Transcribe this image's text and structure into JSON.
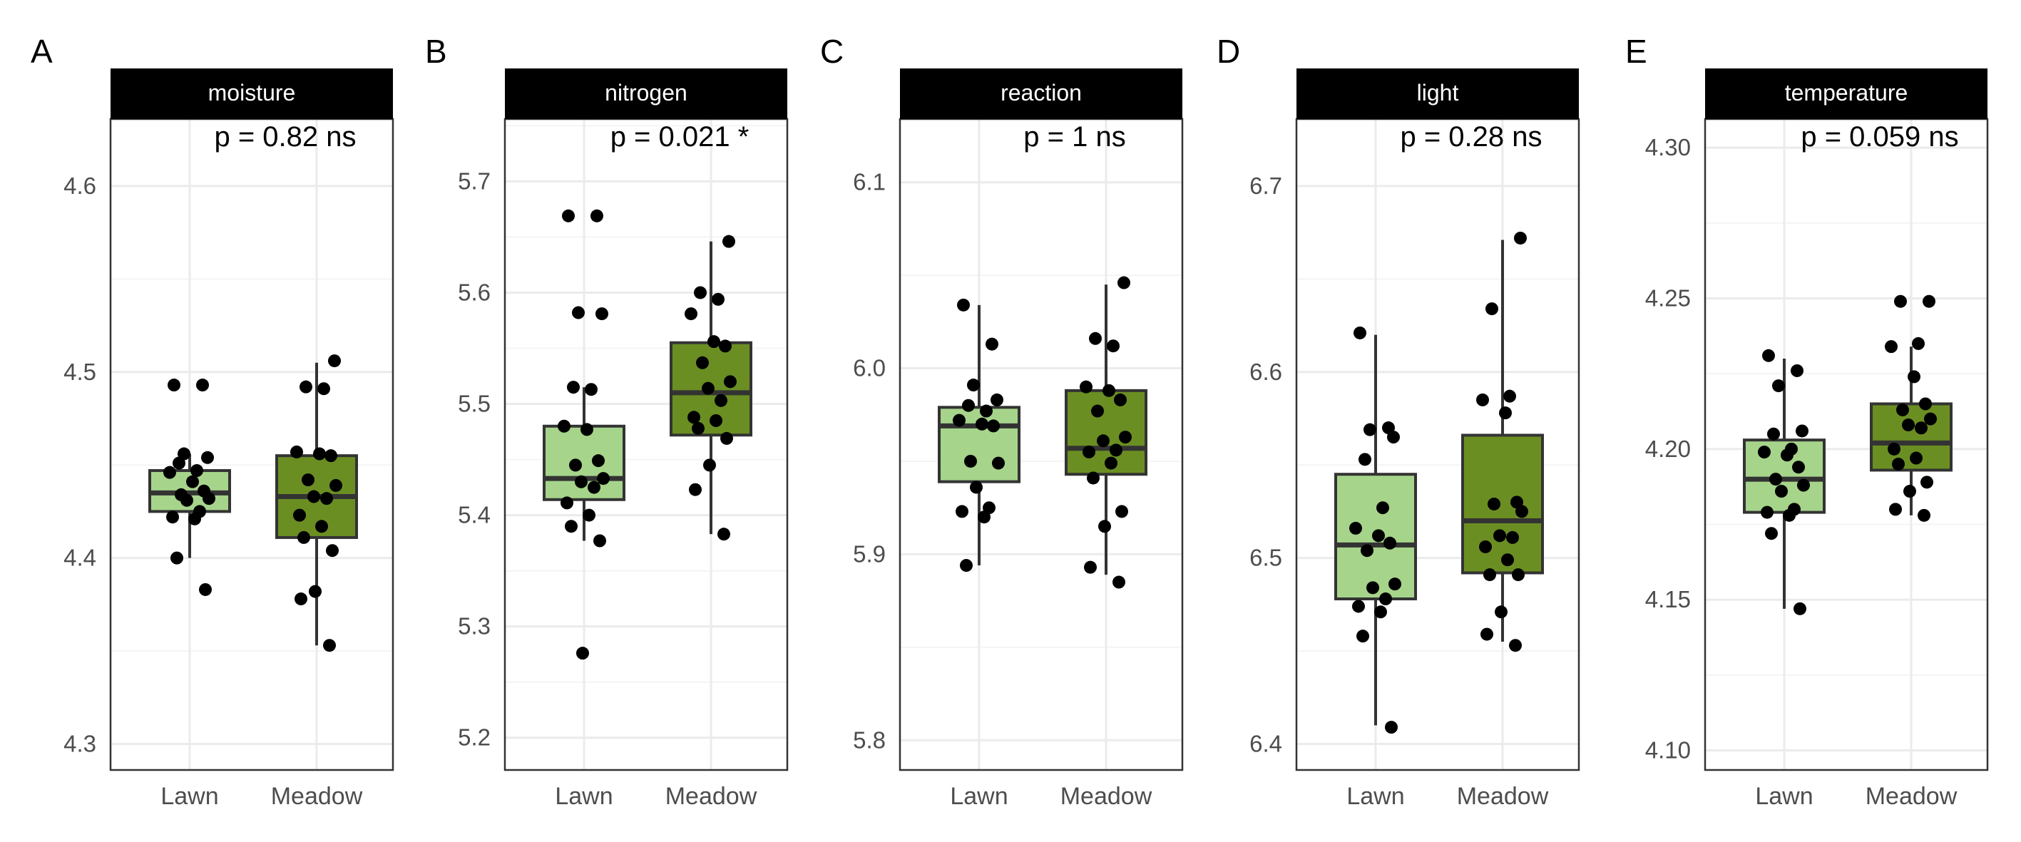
{
  "colors": {
    "Lawn": "#a6d48b",
    "Meadow": "#6b8e23",
    "strip": "#000000",
    "strip_text": "#ffffff",
    "grid_major": "#ebebeb",
    "grid_minor": "#f4f4f4",
    "outline": "#333333",
    "point": "#000000"
  },
  "chart_data": [
    {
      "type": "box",
      "panel": "A",
      "title": "moisture",
      "annotation": "p = 0.82 ns",
      "categories": [
        "Lawn",
        "Meadow"
      ],
      "ylim": [
        4.286,
        4.636
      ],
      "yticks": [
        4.3,
        4.4,
        4.5,
        4.6
      ],
      "ytick_labels": [
        "4.3",
        "4.4",
        "4.5",
        "4.6"
      ],
      "boxes": [
        {
          "category": "Lawn",
          "whisker_low": 4.4,
          "q1": 4.425,
          "median": 4.435,
          "q3": 4.447,
          "whisker_high": 4.456
        },
        {
          "category": "Meadow",
          "whisker_low": 4.353,
          "q1": 4.411,
          "median": 4.433,
          "q3": 4.455,
          "whisker_high": 4.505
        }
      ],
      "points": [
        {
          "category": "Lawn",
          "values": [
            4.493,
            4.493,
            4.456,
            4.454,
            4.451,
            4.447,
            4.446,
            4.441,
            4.436,
            4.434,
            4.432,
            4.431,
            4.425,
            4.422,
            4.421,
            4.4,
            4.383
          ]
        },
        {
          "category": "Meadow",
          "values": [
            4.506,
            4.492,
            4.491,
            4.457,
            4.456,
            4.455,
            4.442,
            4.439,
            4.433,
            4.432,
            4.423,
            4.417,
            4.411,
            4.404,
            4.382,
            4.378,
            4.353
          ]
        }
      ]
    },
    {
      "type": "box",
      "panel": "B",
      "title": "nitrogen",
      "annotation": "p = 0.021 *",
      "categories": [
        "Lawn",
        "Meadow"
      ],
      "ylim": [
        5.171,
        5.756
      ],
      "yticks": [
        5.2,
        5.3,
        5.4,
        5.5,
        5.6,
        5.7
      ],
      "ytick_labels": [
        "5.2",
        "5.3",
        "5.4",
        "5.5",
        "5.6",
        "5.7"
      ],
      "boxes": [
        {
          "category": "Lawn",
          "whisker_low": 5.377,
          "q1": 5.414,
          "median": 5.433,
          "q3": 5.48,
          "whisker_high": 5.515
        },
        {
          "category": "Meadow",
          "whisker_low": 5.383,
          "q1": 5.472,
          "median": 5.51,
          "q3": 5.555,
          "whisker_high": 5.646
        }
      ],
      "points": [
        {
          "category": "Lawn",
          "values": [
            5.669,
            5.669,
            5.582,
            5.581,
            5.515,
            5.513,
            5.48,
            5.477,
            5.449,
            5.445,
            5.433,
            5.43,
            5.425,
            5.411,
            5.4,
            5.39,
            5.377,
            5.276
          ]
        },
        {
          "category": "Meadow",
          "values": [
            5.646,
            5.6,
            5.594,
            5.581,
            5.556,
            5.552,
            5.537,
            5.52,
            5.514,
            5.503,
            5.488,
            5.485,
            5.478,
            5.469,
            5.445,
            5.423,
            5.383
          ]
        }
      ]
    },
    {
      "type": "box",
      "panel": "C",
      "title": "reaction",
      "annotation": "p = 1 ns",
      "categories": [
        "Lawn",
        "Meadow"
      ],
      "ylim": [
        5.784,
        6.134
      ],
      "yticks": [
        5.8,
        5.9,
        6.0,
        6.1
      ],
      "ytick_labels": [
        "5.8",
        "5.9",
        "6.0",
        "6.1"
      ],
      "boxes": [
        {
          "category": "Lawn",
          "whisker_low": 5.894,
          "q1": 5.939,
          "median": 5.969,
          "q3": 5.979,
          "whisker_high": 6.034
        },
        {
          "category": "Meadow",
          "whisker_low": 5.889,
          "q1": 5.943,
          "median": 5.957,
          "q3": 5.988,
          "whisker_high": 6.045
        }
      ],
      "points": [
        {
          "category": "Lawn",
          "values": [
            6.034,
            6.013,
            5.991,
            5.983,
            5.98,
            5.977,
            5.972,
            5.97,
            5.969,
            5.95,
            5.949,
            5.936,
            5.925,
            5.923,
            5.92,
            5.894
          ]
        },
        {
          "category": "Meadow",
          "values": [
            6.046,
            6.016,
            6.012,
            5.99,
            5.988,
            5.983,
            5.977,
            5.963,
            5.961,
            5.956,
            5.955,
            5.949,
            5.941,
            5.923,
            5.915,
            5.893,
            5.885
          ]
        }
      ]
    },
    {
      "type": "box",
      "panel": "D",
      "title": "light",
      "annotation": "p = 0.28 ns",
      "categories": [
        "Lawn",
        "Meadow"
      ],
      "ylim": [
        6.386,
        6.736
      ],
      "yticks": [
        6.4,
        6.5,
        6.6,
        6.7
      ],
      "ytick_labels": [
        "6.4",
        "6.5",
        "6.6",
        "6.7"
      ],
      "boxes": [
        {
          "category": "Lawn",
          "whisker_low": 6.41,
          "q1": 6.478,
          "median": 6.507,
          "q3": 6.545,
          "whisker_high": 6.62
        },
        {
          "category": "Meadow",
          "whisker_low": 6.455,
          "q1": 6.492,
          "median": 6.52,
          "q3": 6.566,
          "whisker_high": 6.671
        }
      ],
      "points": [
        {
          "category": "Lawn",
          "values": [
            6.621,
            6.57,
            6.569,
            6.565,
            6.553,
            6.527,
            6.516,
            6.512,
            6.508,
            6.504,
            6.486,
            6.484,
            6.478,
            6.474,
            6.471,
            6.458,
            6.409
          ]
        },
        {
          "category": "Meadow",
          "values": [
            6.672,
            6.634,
            6.587,
            6.585,
            6.578,
            6.53,
            6.529,
            6.525,
            6.512,
            6.511,
            6.506,
            6.499,
            6.491,
            6.491,
            6.471,
            6.459,
            6.453
          ]
        }
      ]
    },
    {
      "type": "box",
      "panel": "E",
      "title": "temperature",
      "annotation": "p = 0.059 ns",
      "categories": [
        "Lawn",
        "Meadow"
      ],
      "ylim": [
        4.0935,
        4.3095
      ],
      "yticks": [
        4.1,
        4.15,
        4.2,
        4.25,
        4.3
      ],
      "ytick_labels": [
        "4.10",
        "4.15",
        "4.20",
        "4.25",
        "4.30"
      ],
      "boxes": [
        {
          "category": "Lawn",
          "whisker_low": 4.147,
          "q1": 4.179,
          "median": 4.19,
          "q3": 4.203,
          "whisker_high": 4.23
        },
        {
          "category": "Meadow",
          "whisker_low": 4.178,
          "q1": 4.193,
          "median": 4.202,
          "q3": 4.215,
          "whisker_high": 4.234
        }
      ],
      "points": [
        {
          "category": "Lawn",
          "values": [
            4.231,
            4.226,
            4.221,
            4.206,
            4.205,
            4.2,
            4.199,
            4.198,
            4.194,
            4.19,
            4.188,
            4.186,
            4.18,
            4.179,
            4.178,
            4.172,
            4.147
          ]
        },
        {
          "category": "Meadow",
          "values": [
            4.249,
            4.249,
            4.235,
            4.234,
            4.224,
            4.215,
            4.213,
            4.21,
            4.208,
            4.207,
            4.2,
            4.197,
            4.195,
            4.189,
            4.186,
            4.18,
            4.178
          ]
        }
      ]
    }
  ]
}
